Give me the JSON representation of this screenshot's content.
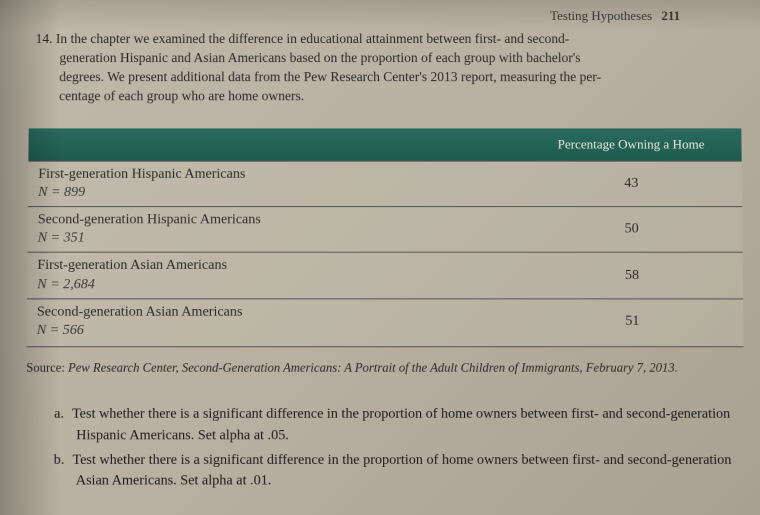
{
  "header": {
    "running_title": "Testing Hypotheses",
    "page_number": "211"
  },
  "question": {
    "number": "14.",
    "line1": "In the chapter we examined the difference in educational attainment between first- and second-",
    "line2": "generation Hispanic and Asian Americans based on the proportion of each group with bachelor's",
    "line3": "degrees. We present additional data from the Pew Research Center's 2013 report, measuring the per-",
    "line4": "centage of each group who are home owners."
  },
  "table": {
    "header_col1": "",
    "header_col2": "Percentage Owning a Home",
    "rows": [
      {
        "label": "First-generation Hispanic Americans",
        "n": "N = 899",
        "value": "43"
      },
      {
        "label": "Second-generation Hispanic Americans",
        "n": "N = 351",
        "value": "50"
      },
      {
        "label": "First-generation Asian Americans",
        "n": "N = 2,684",
        "value": "58"
      },
      {
        "label": "Second-generation Asian Americans",
        "n": "N = 566",
        "value": "51"
      }
    ]
  },
  "source": {
    "label": "Source:",
    "text": "Pew Research Center, Second-Generation Americans: A Portrait of the Adult Children of Immigrants, February 7, 2013."
  },
  "subquestions": {
    "a_letter": "a.",
    "a_text": "Test whether there is a significant difference in the proportion of home owners between first- and second-generation Hispanic Americans. Set alpha at .05.",
    "b_letter": "b.",
    "b_text": "Test whether there is a significant difference in the proportion of home owners between first- and second-generation Asian Americans. Set alpha at .01."
  },
  "styling": {
    "page_bg_start": "#c0b8a8",
    "page_bg_end": "#a8a090",
    "table_header_bg": "#1e5a4d",
    "table_header_text": "#e8e8e0",
    "body_text_color": "#2a2a2a",
    "border_color": "#555555",
    "base_fontsize": 14
  }
}
